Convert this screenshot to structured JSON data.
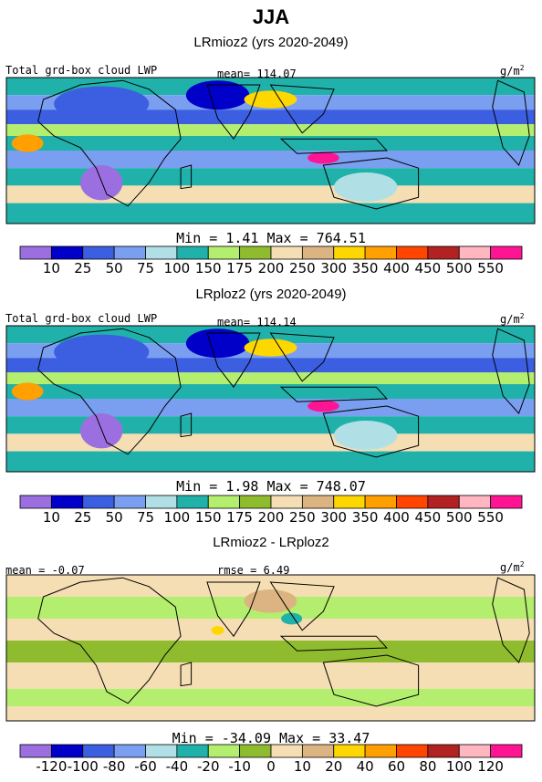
{
  "figure": {
    "title": "JJA"
  },
  "chart_data": [
    {
      "type": "heatmap",
      "title": "LRmioz2 (yrs 2020-2049)",
      "variable_label": "Total grd-box cloud LWP",
      "stat_label": "mean= 114.07",
      "unit": "g/m",
      "unit_sup": "2",
      "minmax_label": "Min =    1.41 Max = 764.51",
      "mean": 114.07,
      "min": 1.41,
      "max": 764.51,
      "colorbar": {
        "colors": [
          "#9b6fe0",
          "#0000c8",
          "#3b5fe0",
          "#7a9ef0",
          "#b0e0e6",
          "#20b2aa",
          "#b4ee6e",
          "#8fbc2e",
          "#f5deb3",
          "#dcb482",
          "#ffd700",
          "#ff9f00",
          "#ff4500",
          "#b22222",
          "#ffb6c1",
          "#ff1493"
        ],
        "tick_labels": [
          "10",
          "25",
          "50",
          "75",
          "100",
          "150",
          "175",
          "200",
          "250",
          "300",
          "350",
          "400",
          "450",
          "500",
          "550"
        ]
      }
    },
    {
      "type": "heatmap",
      "title": "LRploz2 (yrs 2020-2049)",
      "variable_label": "Total grd-box cloud LWP",
      "stat_label": "mean= 114.14",
      "unit": "g/m",
      "unit_sup": "2",
      "minmax_label": "Min =    1.98 Max = 748.07",
      "mean": 114.14,
      "min": 1.98,
      "max": 748.07,
      "colorbar": {
        "colors": [
          "#9b6fe0",
          "#0000c8",
          "#3b5fe0",
          "#7a9ef0",
          "#b0e0e6",
          "#20b2aa",
          "#b4ee6e",
          "#8fbc2e",
          "#f5deb3",
          "#dcb482",
          "#ffd700",
          "#ff9f00",
          "#ff4500",
          "#b22222",
          "#ffb6c1",
          "#ff1493"
        ],
        "tick_labels": [
          "10",
          "25",
          "50",
          "75",
          "100",
          "150",
          "175",
          "200",
          "250",
          "300",
          "350",
          "400",
          "450",
          "500",
          "550"
        ]
      }
    },
    {
      "type": "heatmap",
      "title": "LRmioz2 - LRploz2",
      "stat_label": "mean =   -0.07",
      "rmse_label": "rmse =    6.49",
      "unit": "g/m",
      "unit_sup": "2",
      "minmax_label": "Min = -34.09 Max =  33.47",
      "mean": -0.07,
      "rmse": 6.49,
      "min": -34.09,
      "max": 33.47,
      "colorbar": {
        "colors": [
          "#9b6fe0",
          "#0000c8",
          "#3b5fe0",
          "#7a9ef0",
          "#b0e0e6",
          "#20b2aa",
          "#b4ee6e",
          "#8fbc2e",
          "#f5deb3",
          "#dcb482",
          "#ffd700",
          "#ff9f00",
          "#ff4500",
          "#b22222",
          "#ffb6c1",
          "#ff1493"
        ],
        "tick_labels": [
          "-120",
          "-100",
          "-80",
          "-60",
          "-40",
          "-20",
          "-10",
          "0",
          "10",
          "20",
          "40",
          "60",
          "80",
          "100",
          "120"
        ]
      }
    }
  ]
}
